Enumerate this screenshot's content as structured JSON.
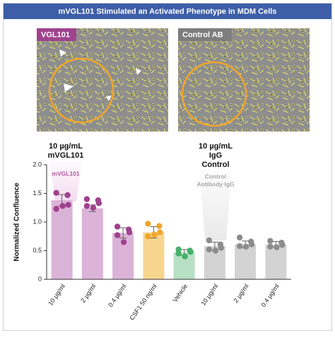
{
  "panels": [
    {
      "label": "VGL101"
    },
    {
      "label": "Control AB"
    }
  ],
  "chart_data": {
    "type": "bar",
    "title": "mVGL101 Stimulated an Activated Phenotype in MDM Cells",
    "y_label": "Normalized Confluence",
    "categories": [
      "10 µg/ml",
      "2 µg/ml",
      "0.4 µg/ml",
      "CSF1 50 ng/ml",
      "Vehicle",
      "10 µg/ml",
      "2 µg/ml",
      "0.4 µg/ml"
    ],
    "values": [
      1.38,
      1.24,
      0.81,
      0.82,
      0.47,
      0.58,
      0.61,
      0.61
    ],
    "errors": [
      0.1,
      0.06,
      0.09,
      0.1,
      0.05,
      0.07,
      0.06,
      0.05
    ],
    "points": [
      [
        1.51,
        1.47,
        1.3,
        1.23,
        1.28
      ],
      [
        1.4,
        1.38,
        1.33,
        1.28,
        1.25
      ],
      [
        0.92,
        0.87,
        0.82,
        0.77,
        0.65
      ],
      [
        0.97,
        0.93,
        0.82,
        0.75,
        0.78
      ],
      [
        0.52,
        0.5,
        0.48,
        0.45,
        0.4
      ],
      [
        0.68,
        0.61,
        0.55,
        0.52,
        0.5
      ],
      [
        0.73,
        0.66,
        0.61,
        0.58,
        0.57
      ],
      [
        0.67,
        0.64,
        0.6,
        0.57,
        0.56
      ]
    ],
    "colors": [
      "#dcb3d8",
      "#dcb3d8",
      "#dcb3d8",
      "#f8d58e",
      "#b7e0c5",
      "#d3d3d3",
      "#d3d3d3",
      "#d3d3d3"
    ],
    "point_colors": [
      "#a0428e",
      "#a0428e",
      "#a0428e",
      "#f0a52c",
      "#46b06c",
      "#8c8c8c",
      "#8c8c8c",
      "#8c8c8c"
    ],
    "ylim": [
      0,
      2.0
    ],
    "yticks": [
      0,
      0.5,
      {
        "value": 1.0,
        "label": "1.0"
      },
      1.5,
      {
        "value": 2.0,
        "label": "2.0"
      }
    ],
    "annotations": [
      {
        "text": "10 µg/mL"
      },
      {
        "text": "mVGL101"
      },
      {
        "text": "mVGL101"
      },
      {
        "text": "10 µg/mL"
      },
      {
        "text": "IgG"
      },
      {
        "text": "Control"
      },
      {
        "text": "Control"
      },
      {
        "text": "Antibody IgG"
      }
    ]
  }
}
